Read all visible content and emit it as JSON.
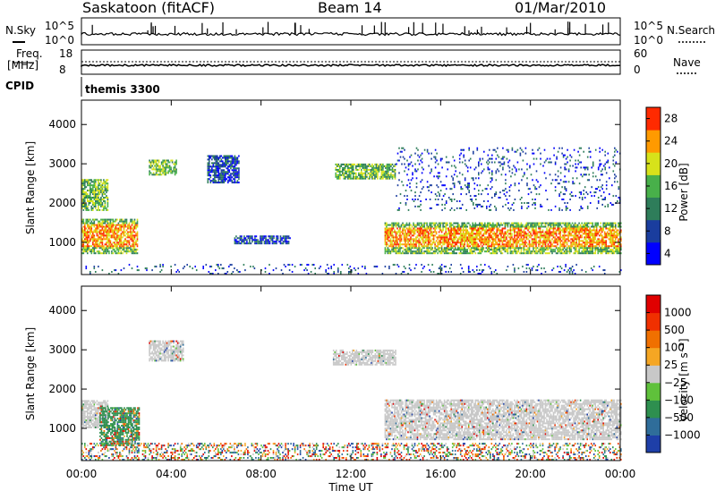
{
  "header": {
    "station": "Saskatoon (fitACF)",
    "beam": "Beam 14",
    "date": "01/Mar/2010"
  },
  "panels": {
    "nsky_label": "N.Sky",
    "nsearch_label": "N.Search",
    "freq_label_1": "Freq.",
    "freq_label_2": "[MHz]",
    "nave_label": "Nave",
    "cpid_label": "CPID",
    "cpid_value": "themis 3300",
    "nsky_ticks": [
      "10^5",
      "10^0"
    ],
    "nsearch_ticks": [
      "10^5",
      "10^0"
    ],
    "freq_ticks": [
      "18",
      "8"
    ],
    "nave_ticks": [
      "60",
      "0"
    ]
  },
  "chart_data": [
    {
      "type": "heatmap",
      "name": "power",
      "xlabel": "Time UT",
      "ylabel": "Slant Range [km]",
      "x_ticks": [
        "00:00",
        "04:00",
        "08:00",
        "12:00",
        "16:00",
        "20:00",
        "00:00"
      ],
      "xlim_hours": [
        0,
        24
      ],
      "y_ticks": [
        1000,
        2000,
        3000,
        4000
      ],
      "ylim": [
        180,
        4620
      ],
      "colorbar": {
        "label": "Power [dB]",
        "ticks": [
          4,
          8,
          12,
          16,
          20,
          24,
          28
        ],
        "range": [
          0,
          30
        ],
        "colors": [
          "#0000ff",
          "#1a3d9e",
          "#2e7d5a",
          "#48b04a",
          "#d7e21a",
          "#ff9a00",
          "#ff2a00"
        ]
      },
      "echo_regions": [
        {
          "t": [
            0.0,
            2.5
          ],
          "range": [
            700,
            1600
          ],
          "level": "high"
        },
        {
          "t": [
            0.0,
            1.2
          ],
          "range": [
            1800,
            2600
          ],
          "level": "medium"
        },
        {
          "t": [
            3.0,
            4.2
          ],
          "range": [
            2700,
            3100
          ],
          "level": "medium"
        },
        {
          "t": [
            5.6,
            7.0
          ],
          "range": [
            2500,
            3200
          ],
          "level": "low"
        },
        {
          "t": [
            6.8,
            9.3
          ],
          "range": [
            950,
            1150
          ],
          "level": "low"
        },
        {
          "t": [
            11.3,
            14.0
          ],
          "range": [
            2600,
            3000
          ],
          "level": "medium"
        },
        {
          "t": [
            13.5,
            24.0
          ],
          "range": [
            700,
            1500
          ],
          "level": "high"
        },
        {
          "t": [
            14.0,
            24.0
          ],
          "range": [
            1800,
            3400
          ],
          "level": "sparse"
        },
        {
          "t": [
            0.0,
            24.0
          ],
          "range": [
            180,
            450
          ],
          "level": "sparse"
        }
      ]
    },
    {
      "type": "heatmap",
      "name": "velocity",
      "xlabel": "Time UT",
      "ylabel": "Slant Range [km]",
      "x_ticks": [
        "00:00",
        "04:00",
        "08:00",
        "12:00",
        "16:00",
        "20:00",
        "00:00"
      ],
      "xlim_hours": [
        0,
        24
      ],
      "y_ticks": [
        1000,
        2000,
        3000,
        4000
      ],
      "ylim": [
        180,
        4620
      ],
      "colorbar": {
        "label": "Velocity [m s⁻¹]",
        "ticks": [
          "1000",
          "500",
          "100",
          "25",
          "−25",
          "−100",
          "−500",
          "−1000"
        ],
        "colors": [
          "#1e3fa8",
          "#2f6d9a",
          "#2e8f4f",
          "#5fc13b",
          "#c8c8c8",
          "#f5a623",
          "#f07000",
          "#f03000",
          "#e00000"
        ]
      },
      "echo_regions": [
        {
          "t": [
            0.0,
            1.2
          ],
          "range": [
            1000,
            1700
          ],
          "level": "ground"
        },
        {
          "t": [
            0.8,
            2.6
          ],
          "range": [
            550,
            1500
          ],
          "level": "green"
        },
        {
          "t": [
            3.0,
            4.5
          ],
          "range": [
            2700,
            3200
          ],
          "level": "ground"
        },
        {
          "t": [
            13.5,
            24.0
          ],
          "range": [
            700,
            1700
          ],
          "level": "ground"
        },
        {
          "t": [
            11.2,
            14.0
          ],
          "range": [
            2600,
            3000
          ],
          "level": "ground"
        },
        {
          "t": [
            0.0,
            24.0
          ],
          "range": [
            180,
            600
          ],
          "level": "mixed"
        }
      ]
    }
  ]
}
